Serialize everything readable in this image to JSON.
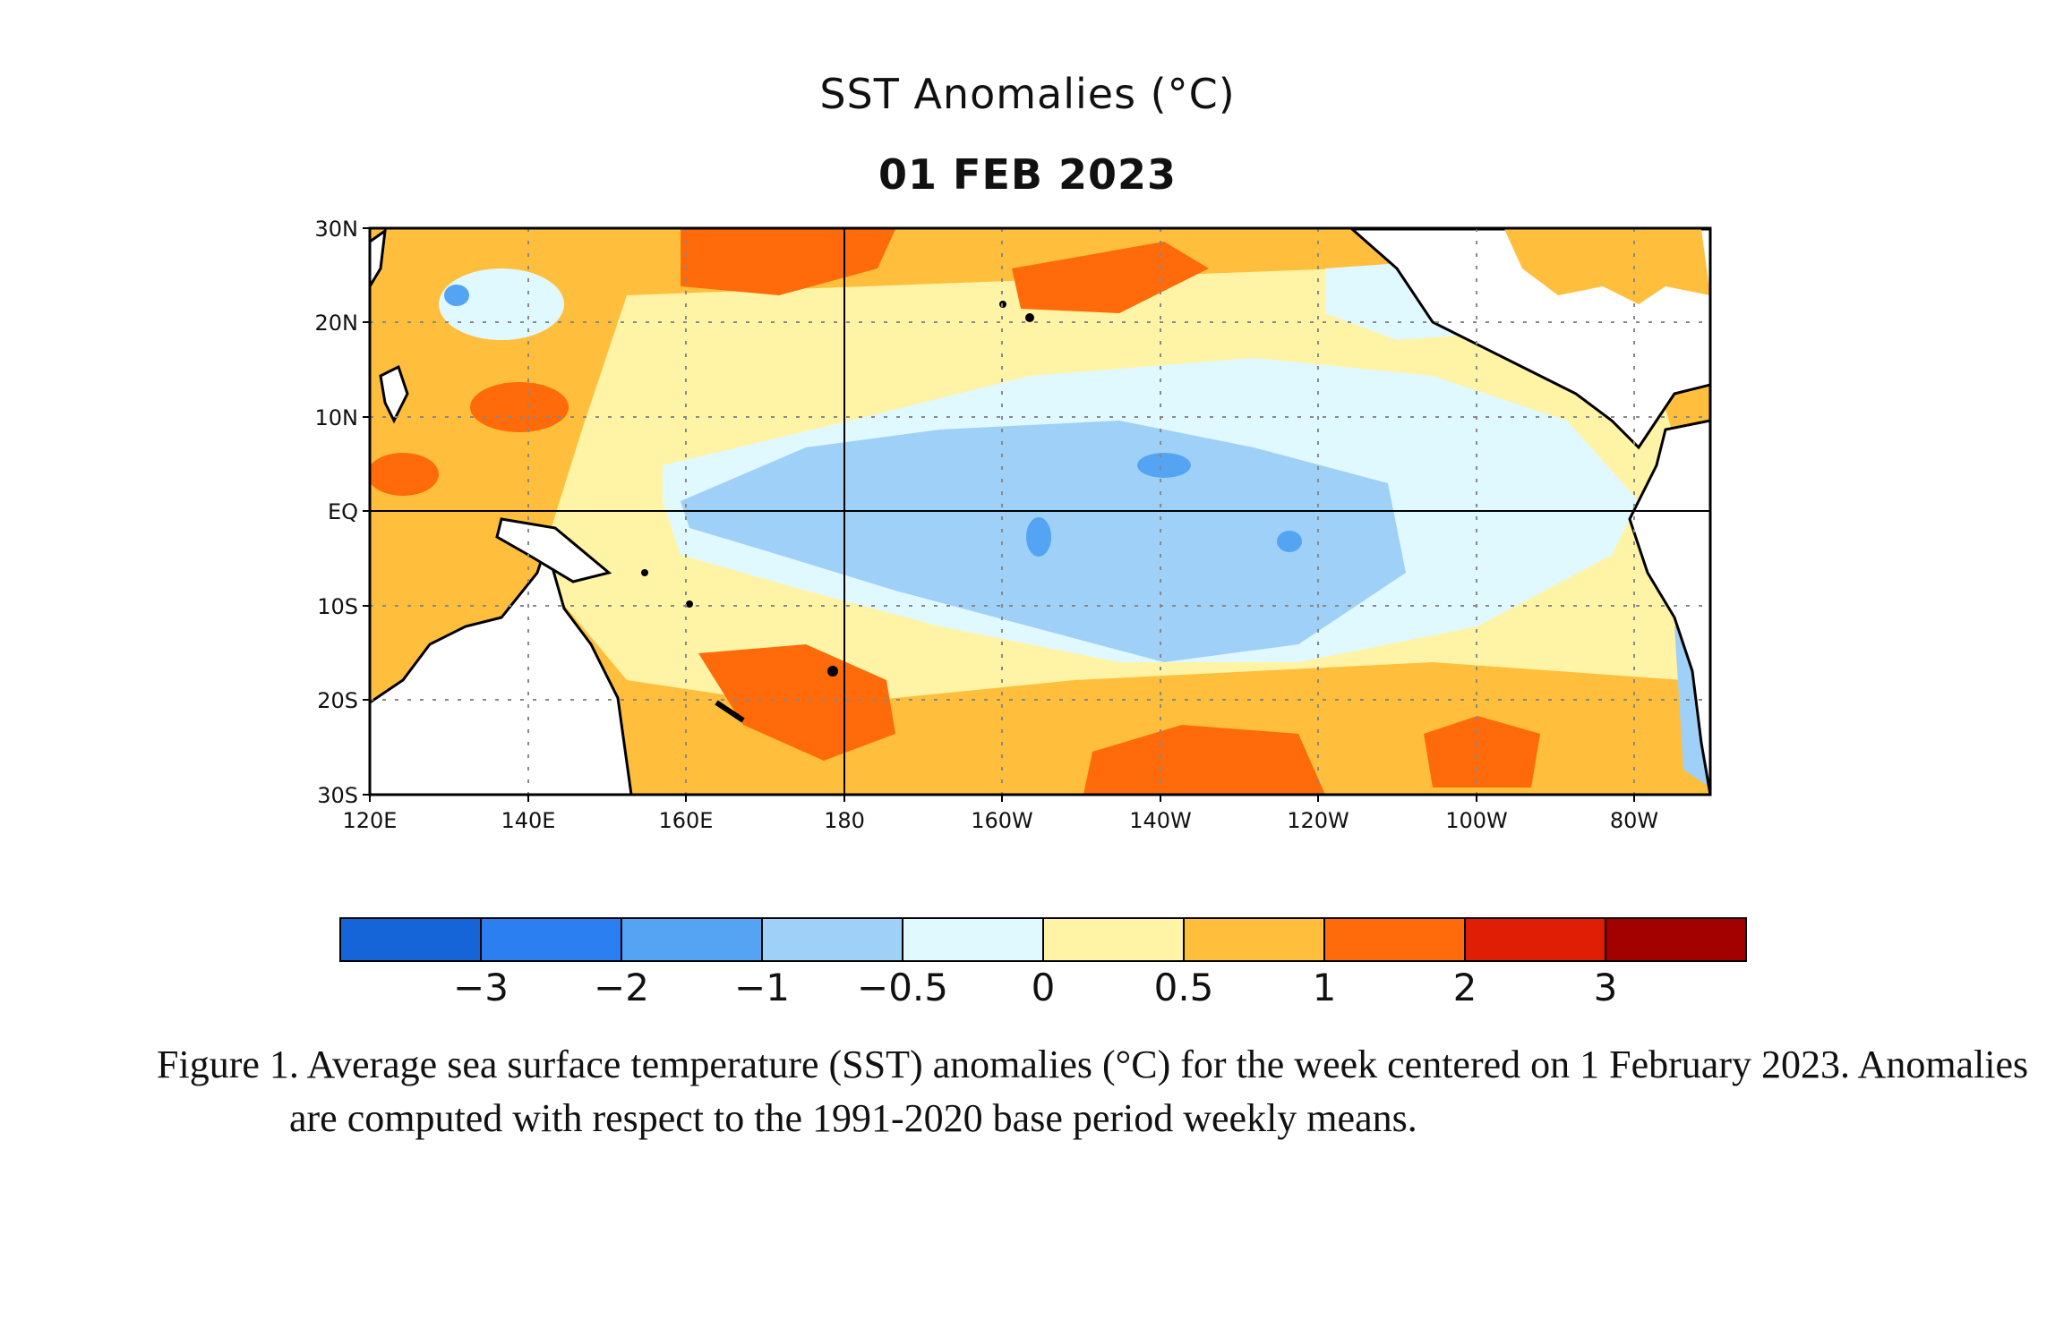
{
  "figure": {
    "title": "SST Anomalies (°C)",
    "date": "01 FEB 2023",
    "caption": "Figure 1. Average sea surface temperature (SST) anomalies (°C) for the week centered on 1 February 2023.  Anomalies are computed with respect to the 1991-2020 base period weekly means."
  },
  "map": {
    "region": "Tropical Pacific",
    "lon_labels": [
      "120E",
      "140E",
      "160E",
      "180",
      "160W",
      "140W",
      "120W",
      "100W",
      "80W"
    ],
    "lat_labels": [
      "30N",
      "20N",
      "10N",
      "EQ",
      "10S",
      "20S",
      "30S"
    ],
    "land_color": "#ffffff",
    "coast_color": "#000000"
  },
  "colorbar": {
    "colors": [
      "#1565d8",
      "#2b7ff0",
      "#55a4f3",
      "#9fd0f8",
      "#e0f8ff",
      "#fff4a6",
      "#ffbf3c",
      "#ff6a0a",
      "#e01e06",
      "#a30000"
    ],
    "labels": [
      "−3",
      "−2",
      "−1",
      "−0.5",
      "0",
      "0.5",
      "1",
      "2",
      "3"
    ]
  }
}
